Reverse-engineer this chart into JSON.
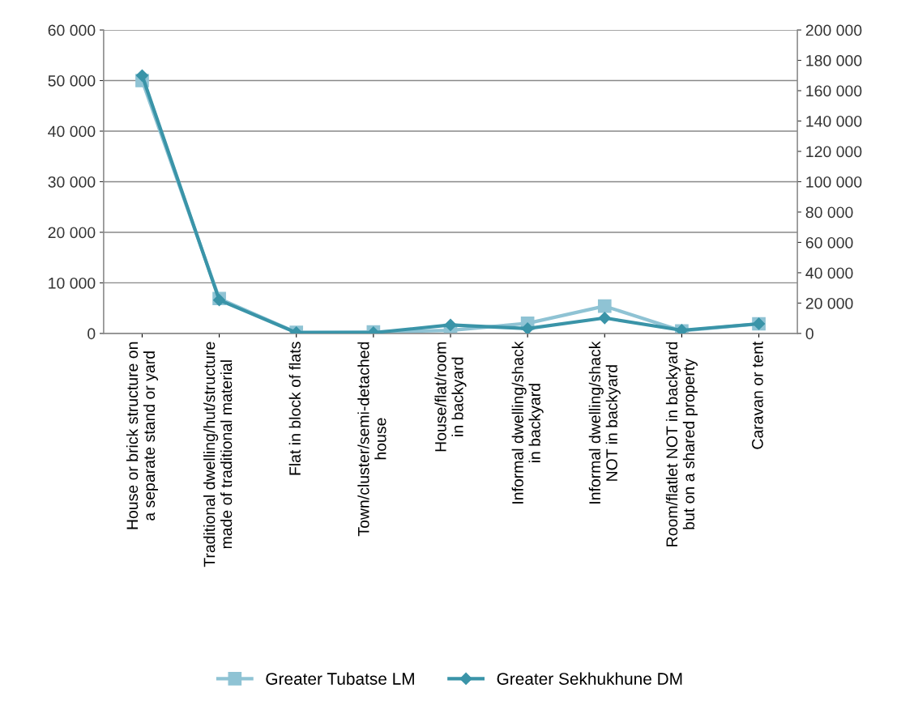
{
  "chart_data": {
    "type": "line",
    "categories": [
      "House or brick structure on a separate stand or yard",
      "Traditional dwelling/hut/structure made of traditional material",
      "Flat in block of flats",
      "Town/cluster/semi-detached house",
      "House/flat/room in backyard",
      "Informal dwelling/shack in backyard",
      "Informal dwelling/shack NOT in backyard",
      "Room/flatlet NOT in backyard but on a shared property",
      "Caravan or tent"
    ],
    "series": [
      {
        "name": "Greater Tubatse LM",
        "color": "#8fc3d4",
        "marker": "square",
        "values": [
          50000,
          6900,
          200,
          300,
          600,
          2000,
          5400,
          500,
          1900
        ]
      },
      {
        "name": "Greater Sekhukhune DM",
        "color": "#3a94a8",
        "marker": "diamond",
        "axis": "y2",
        "values": [
          170000,
          22000,
          500,
          500,
          5600,
          3200,
          10200,
          2100,
          6400
        ]
      }
    ],
    "ylim": [
      0,
      60000
    ],
    "yticks": [
      0,
      {
        "value": 10000,
        "label": "10 000"
      },
      {
        "value": 20000,
        "label": "20 000"
      },
      {
        "value": 30000,
        "label": "30 000"
      },
      {
        "value": 40000,
        "label": "40 000"
      },
      {
        "value": 50000,
        "label": "50 000"
      },
      {
        "value": 60000,
        "label": "60 000"
      }
    ],
    "y2lim": [
      0,
      200000
    ],
    "y2ticks": [
      0,
      {
        "value": 20000,
        "label": "20 000"
      },
      {
        "value": 40000,
        "label": "40 000"
      },
      {
        "value": 60000,
        "label": "60 000"
      },
      {
        "value": 80000,
        "label": "80 000"
      },
      {
        "value": 100000,
        "label": "100 000"
      },
      {
        "value": 120000,
        "label": "120 000"
      },
      {
        "value": 140000,
        "label": "140 000"
      },
      {
        "value": 160000,
        "label": "160 000"
      },
      {
        "value": 180000,
        "label": "180 000"
      },
      {
        "value": 200000,
        "label": "200 000"
      }
    ],
    "grid": "y",
    "legend": "bottom",
    "line_style": "solid"
  }
}
